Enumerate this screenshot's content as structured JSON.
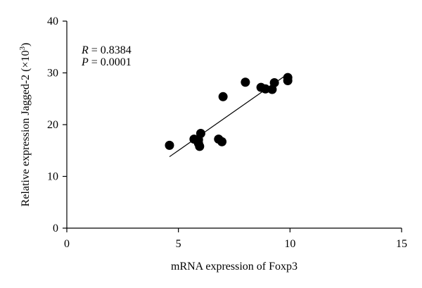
{
  "chart_data": {
    "type": "scatter",
    "xlabel": "mRNA expression of Foxp3",
    "ylabel_main": "Relative expression Jagged-2 (×10",
    "ylabel_sup": "3",
    "ylabel_end": ")",
    "xlim": [
      0,
      15
    ],
    "ylim": [
      0,
      40
    ],
    "xticks": [
      0,
      5,
      10,
      15
    ],
    "yticks": [
      0,
      10,
      20,
      30,
      40
    ],
    "xtick_labels": [
      "0",
      "5",
      "10",
      "15"
    ],
    "ytick_labels": [
      "0",
      "10",
      "20",
      "30",
      "40"
    ],
    "annotations": {
      "r_symbol": "R",
      "r_value": " = 0.8384",
      "p_symbol": "P",
      "p_value": " = 0.0001"
    },
    "points": [
      {
        "x": 4.6,
        "y": 16.0
      },
      {
        "x": 5.7,
        "y": 17.2
      },
      {
        "x": 5.9,
        "y": 17.1
      },
      {
        "x": 6.0,
        "y": 18.3
      },
      {
        "x": 5.9,
        "y": 16.4
      },
      {
        "x": 5.95,
        "y": 15.8
      },
      {
        "x": 6.8,
        "y": 17.2
      },
      {
        "x": 6.95,
        "y": 16.7
      },
      {
        "x": 7.0,
        "y": 25.4
      },
      {
        "x": 8.0,
        "y": 28.2
      },
      {
        "x": 8.7,
        "y": 27.2
      },
      {
        "x": 8.9,
        "y": 26.9
      },
      {
        "x": 9.2,
        "y": 26.8
      },
      {
        "x": 9.3,
        "y": 28.1
      },
      {
        "x": 9.9,
        "y": 28.5
      },
      {
        "x": 9.9,
        "y": 29.1
      }
    ],
    "fit_line": {
      "x": [
        4.6,
        9.9
      ],
      "y": [
        13.8,
        29.8
      ]
    },
    "grid": false,
    "legend": "none"
  }
}
